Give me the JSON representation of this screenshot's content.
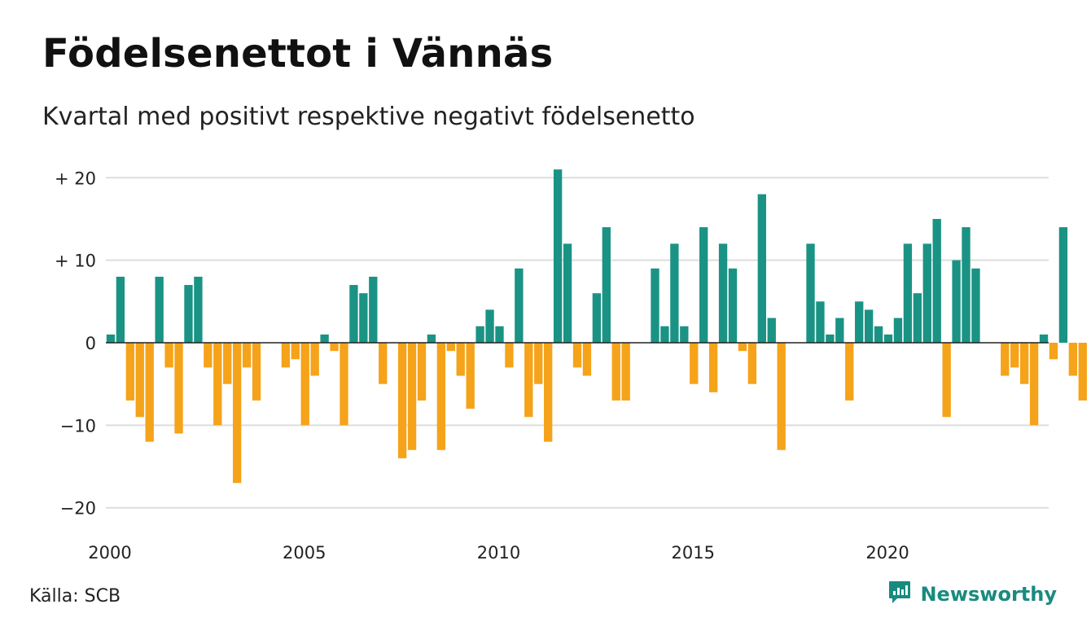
{
  "header": {
    "title": "Födelsenettot i Vännäs",
    "subtitle": "Kvartal med positivt respektive negativt födelsenetto"
  },
  "footer": {
    "source": "Källa: SCB",
    "brand": "Newsworthy",
    "brand_icon": "newsworthy-logo-icon"
  },
  "colors": {
    "positive": "#1a9384",
    "negative": "#f5a31a",
    "grid": "#dddddd",
    "baseline": "#222222"
  },
  "chart_data": {
    "type": "bar",
    "title": "Födelsenettot i Vännäs",
    "subtitle": "Kvartal med positivt respektive negativt födelsenetto",
    "x_start_year": 2000,
    "values": [
      1,
      8,
      -7,
      -9,
      -12,
      8,
      -3,
      -11,
      7,
      8,
      -3,
      -10,
      -5,
      -17,
      -3,
      -7,
      0,
      0,
      -3,
      -2,
      -10,
      -4,
      1,
      -1,
      -10,
      7,
      6,
      8,
      -5,
      0,
      -14,
      -13,
      -7,
      1,
      -13,
      -1,
      -4,
      -8,
      2,
      4,
      2,
      -3,
      9,
      -9,
      -5,
      -12,
      21,
      12,
      -3,
      -4,
      6,
      14,
      -7,
      -7,
      0,
      0,
      9,
      2,
      12,
      2,
      -5,
      14,
      -6,
      12,
      9,
      -1,
      -5,
      18,
      3,
      -13,
      0,
      0,
      12,
      5,
      1,
      3,
      -7,
      5,
      4,
      2,
      1,
      3,
      12,
      6,
      12,
      15,
      -9,
      10,
      14,
      9,
      0,
      0,
      -4,
      -3,
      -5,
      -10,
      1,
      -2,
      14,
      -4,
      -7
    ],
    "xlim": [
      2000,
      2024.25
    ],
    "x_ticks": [
      {
        "value": 2000,
        "label": "2000"
      },
      {
        "value": 2005,
        "label": "2005"
      },
      {
        "value": 2010,
        "label": "2010"
      },
      {
        "value": 2015,
        "label": "2015"
      },
      {
        "value": 2020,
        "label": "2020"
      }
    ],
    "ylim": [
      -22,
      22
    ],
    "y_ticks": [
      {
        "value": 20,
        "label": "+ 20"
      },
      {
        "value": 10,
        "label": "+ 10"
      },
      {
        "value": 0,
        "label": "0"
      },
      {
        "value": -10,
        "label": "−10"
      },
      {
        "value": -20,
        "label": "−20"
      }
    ],
    "grid": true,
    "legend": "none"
  }
}
